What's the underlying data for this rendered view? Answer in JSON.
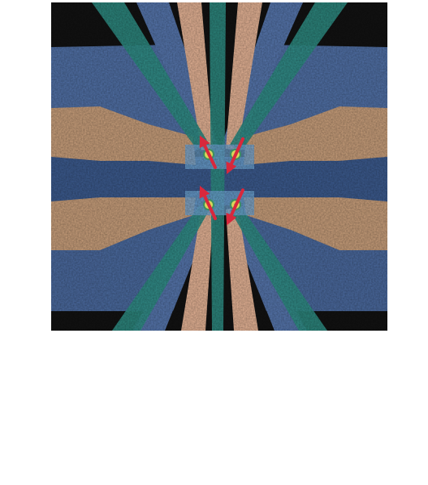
{
  "image": {
    "kind": "false-colour electron micrograph of a gate-defined quantum dot device",
    "colors": {
      "substrate": "#121212",
      "blue_gate": "#5577b0",
      "blue_gate_dark": "#3f5f96",
      "teal_gate": "#2f8f86",
      "peach_gate": "#e6b496",
      "tan_gate": "#caa07c",
      "light_blue_channel": "#6fa6d6",
      "dot_fill": "#d8d65a",
      "dot_ring": "#3d8f60",
      "spin_arrow": "#d8283c"
    },
    "quantum_dots": 4,
    "spin_arrows": 4
  }
}
